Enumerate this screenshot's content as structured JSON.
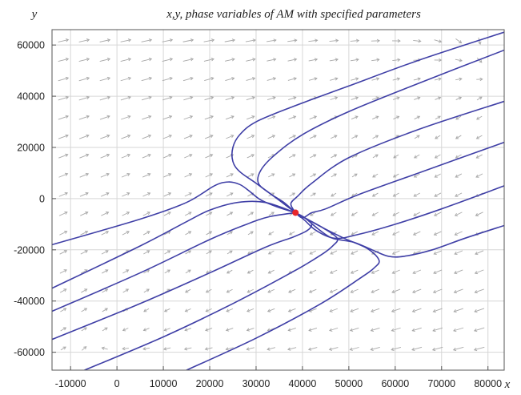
{
  "chart_data": {
    "type": "line",
    "title": "x,y, phase variables of AM with specified parameters",
    "xlabel": "x",
    "ylabel": "y",
    "xlim": [
      -14000,
      83500
    ],
    "ylim": [
      -67000,
      66000
    ],
    "x_ticks": [
      -10000,
      0,
      10000,
      20000,
      30000,
      40000,
      50000,
      60000,
      70000,
      80000
    ],
    "y_ticks": [
      60000,
      40000,
      20000,
      0,
      -20000,
      -40000,
      -60000
    ],
    "grid": true,
    "vector_field": {
      "description": "direction arrows (gray)",
      "equilibrium": [
        38500,
        -5500
      ]
    },
    "equilibrium_point": {
      "x": 38500,
      "y": -5500,
      "color": "#e8262a"
    },
    "colors": {
      "trajectory": "#3f3fa6",
      "arrow": "#a8a8a8",
      "grid": "#d6d6d6",
      "point": "#e8262a"
    },
    "series": [
      {
        "points": [
          [
            -14000,
            -18000
          ],
          [
            5000,
            -8000
          ],
          [
            15000,
            -1500
          ],
          [
            21000,
            5000
          ],
          [
            24000,
            6500
          ],
          [
            26500,
            5500
          ],
          [
            28500,
            3000
          ],
          [
            31000,
            -500
          ],
          [
            34500,
            -3200
          ],
          [
            38500,
            -5500
          ]
        ]
      },
      {
        "points": [
          [
            -14000,
            -35000
          ],
          [
            5000,
            -18500
          ],
          [
            15000,
            -9000
          ],
          [
            20000,
            -4500
          ],
          [
            26000,
            -1500
          ],
          [
            32000,
            -1500
          ],
          [
            38500,
            -5500
          ]
        ]
      },
      {
        "points": [
          [
            -14000,
            -44000
          ],
          [
            5000,
            -29000
          ],
          [
            20000,
            -16000
          ],
          [
            28000,
            -10000
          ],
          [
            33000,
            -7000
          ],
          [
            38500,
            -5500
          ]
        ]
      },
      {
        "points": [
          [
            -14000,
            -55000
          ],
          [
            5000,
            -41000
          ],
          [
            20000,
            -29000
          ],
          [
            32000,
            -19000
          ],
          [
            38000,
            -15000
          ],
          [
            41000,
            -12500
          ],
          [
            42000,
            -10000
          ],
          [
            40500,
            -7500
          ],
          [
            38500,
            -5500
          ]
        ]
      },
      {
        "points": [
          [
            -7000,
            -67000
          ],
          [
            10000,
            -54000
          ],
          [
            25000,
            -41000
          ],
          [
            38000,
            -28500
          ],
          [
            44000,
            -22000
          ],
          [
            46500,
            -18500
          ],
          [
            47500,
            -15500
          ],
          [
            44500,
            -11500
          ],
          [
            41000,
            -8000
          ],
          [
            38500,
            -5500
          ]
        ]
      },
      {
        "points": [
          [
            15000,
            -67000
          ],
          [
            30000,
            -54500
          ],
          [
            44000,
            -41000
          ],
          [
            52500,
            -31000
          ],
          [
            55500,
            -27000
          ],
          [
            56500,
            -24000
          ],
          [
            54000,
            -19500
          ],
          [
            49000,
            -15500
          ],
          [
            44000,
            -11000
          ],
          [
            40500,
            -7500
          ],
          [
            38500,
            -5500
          ]
        ]
      },
      {
        "points": [
          [
            83500,
            65000
          ],
          [
            65000,
            54000
          ],
          [
            50000,
            44000
          ],
          [
            38000,
            36000
          ],
          [
            30000,
            30000
          ],
          [
            26500,
            25000
          ],
          [
            25000,
            20000
          ],
          [
            25000,
            14500
          ],
          [
            26500,
            10500
          ],
          [
            30000,
            6000
          ],
          [
            34500,
            0
          ],
          [
            38500,
            -5500
          ]
        ]
      },
      {
        "points": [
          [
            83500,
            58000
          ],
          [
            65000,
            45000
          ],
          [
            50000,
            34000
          ],
          [
            40000,
            25000
          ],
          [
            34000,
            17000
          ],
          [
            31000,
            11000
          ],
          [
            30500,
            6000
          ],
          [
            33000,
            2000
          ],
          [
            36000,
            -1500
          ],
          [
            38500,
            -5500
          ]
        ]
      },
      {
        "points": [
          [
            83500,
            38000
          ],
          [
            65000,
            27000
          ],
          [
            50000,
            16000
          ],
          [
            42000,
            6000
          ],
          [
            39000,
            1000
          ],
          [
            37500,
            -2000
          ],
          [
            38500,
            -5500
          ]
        ]
      },
      {
        "points": [
          [
            83500,
            22000
          ],
          [
            65000,
            10000
          ],
          [
            52000,
            1500
          ],
          [
            45000,
            -4000
          ],
          [
            42000,
            -5500
          ],
          [
            40000,
            -7500
          ],
          [
            38500,
            -5500
          ]
        ]
      },
      {
        "points": [
          [
            83500,
            5000
          ],
          [
            70000,
            -4000
          ],
          [
            60000,
            -10000
          ],
          [
            52000,
            -14000
          ],
          [
            47000,
            -15500
          ],
          [
            43000,
            -12500
          ],
          [
            40500,
            -8500
          ],
          [
            38500,
            -5500
          ]
        ]
      },
      {
        "points": [
          [
            83500,
            -10500
          ],
          [
            75000,
            -15500
          ],
          [
            68000,
            -20000
          ],
          [
            62000,
            -22500
          ],
          [
            58500,
            -22500
          ],
          [
            55000,
            -20000
          ],
          [
            51000,
            -17000
          ],
          [
            46500,
            -15500
          ],
          [
            43500,
            -12000
          ],
          [
            40500,
            -7500
          ],
          [
            38500,
            -5500
          ]
        ]
      }
    ]
  }
}
